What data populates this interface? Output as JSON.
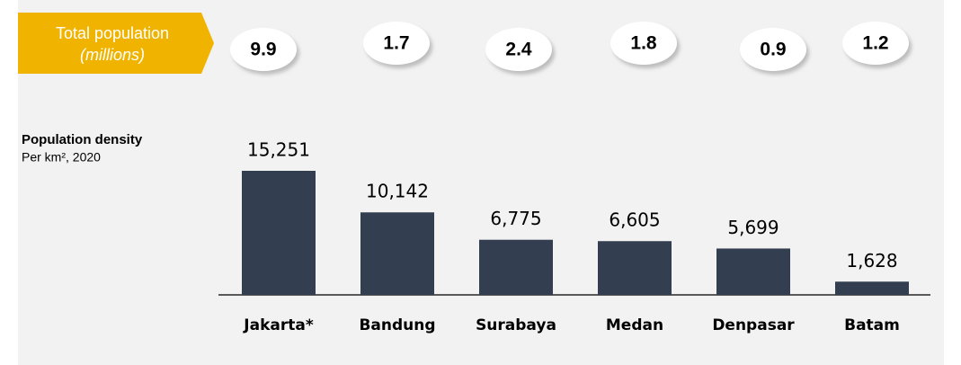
{
  "chart_data": {
    "type": "bar",
    "population": {
      "title": "Total population",
      "subtitle": "(millions)",
      "values": [
        9.9,
        1.7,
        2.4,
        1.8,
        0.9,
        1.2
      ]
    },
    "axis_title": "Population density",
    "axis_subtitle": "Per km², 2020",
    "categories": [
      "Jakarta*",
      "Bandung",
      "Surabaya",
      "Medan",
      "Denpasar",
      "Batam"
    ],
    "values": [
      15251,
      10142,
      6775,
      6605,
      5699,
      1628
    ],
    "value_labels": [
      "15,251",
      "10,142",
      "6,775",
      "6,605",
      "5,699",
      "1,628"
    ],
    "color": "#333f50"
  }
}
